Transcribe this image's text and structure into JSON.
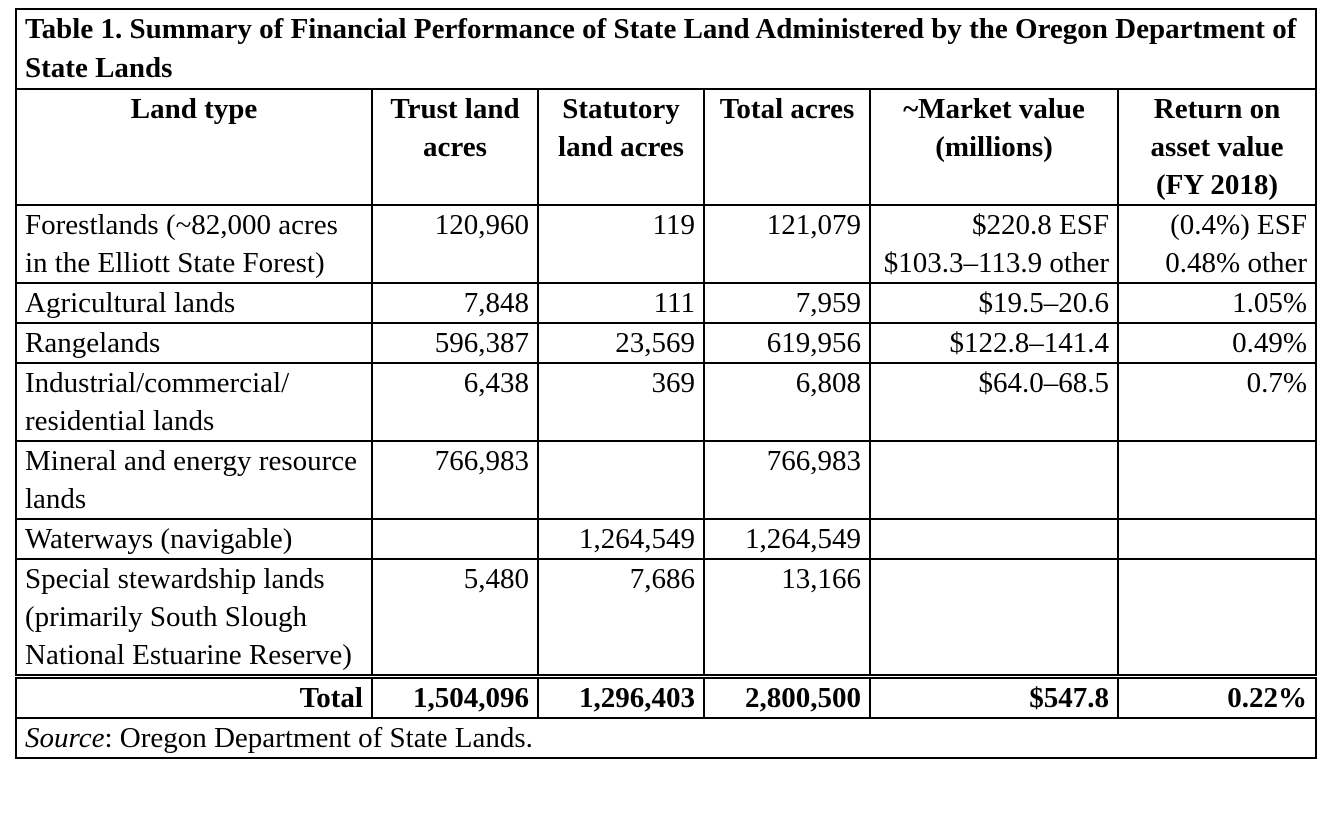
{
  "caption": "Table 1. Summary of Financial Performance of State Land Administered by the Oregon Department of State Lands",
  "headers": {
    "land_type": "Land type",
    "trust": "Trust land acres",
    "statutory": "Statutory land acres",
    "total": "Total acres",
    "market": "~Market value (millions)",
    "return": "Return on asset value (FY 2018)"
  },
  "rows": [
    {
      "land_type": "Forestlands (~82,000 acres in the Elliott State Forest)",
      "trust": "120,960",
      "statutory": "119",
      "total": "121,079",
      "market_1": "$220.8 ESF",
      "market_2": "$103.3–113.9 other",
      "return_1": "(0.4%) ESF",
      "return_2": "0.48% other"
    },
    {
      "land_type": "Agricultural lands",
      "trust": "7,848",
      "statutory": "111",
      "total": "7,959",
      "market": "$19.5–20.6",
      "return": "1.05%"
    },
    {
      "land_type": "Rangelands",
      "trust": "596,387",
      "statutory": "23,569",
      "total": "619,956",
      "market": "$122.8–141.4",
      "return": "0.49%"
    },
    {
      "land_type": "Industrial/commercial/ residential lands",
      "trust": "6,438",
      "statutory": "369",
      "total": "6,808",
      "market": "$64.0–68.5",
      "return": "0.7%"
    },
    {
      "land_type": "Mineral and energy resource lands",
      "trust": "766,983",
      "statutory": "",
      "total": "766,983",
      "market": "",
      "return": ""
    },
    {
      "land_type": "Waterways (navigable)",
      "trust": "",
      "statutory": "1,264,549",
      "total": "1,264,549",
      "market": "",
      "return": ""
    },
    {
      "land_type": "Special stewardship lands (primarily South Slough National Estuarine Reserve)",
      "trust": "5,480",
      "statutory": "7,686",
      "total": "13,166",
      "market": "",
      "return": ""
    }
  ],
  "total_row": {
    "label": "Total",
    "trust": "1,504,096",
    "statutory": "1,296,403",
    "total": "2,800,500",
    "market": "$547.8",
    "return": "0.22%"
  },
  "source": {
    "label": "Source",
    "text": ": Oregon Department of State Lands."
  }
}
